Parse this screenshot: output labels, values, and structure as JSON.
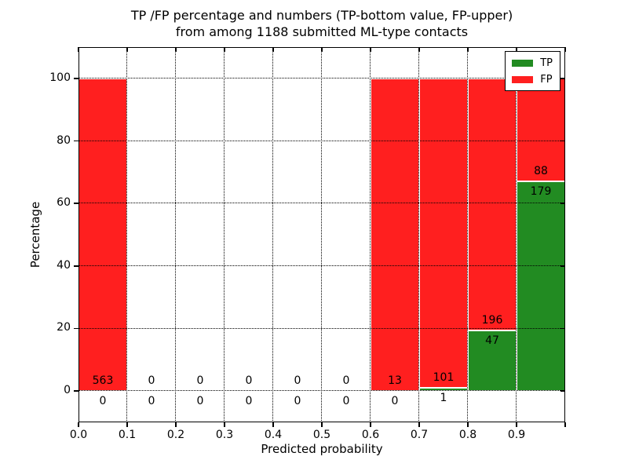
{
  "chart_data": {
    "type": "bar",
    "subtype": "stacked-percentage-histogram",
    "title_line1": "TP /FP percentage and numbers (TP-bottom value, FP-upper)",
    "title_line2": "from among 1188 submitted ML-type contacts",
    "xlabel": "Predicted probability",
    "ylabel": "Percentage",
    "xlim": [
      0.0,
      1.0
    ],
    "ylim": [
      -10,
      110
    ],
    "grid": "dotted, both axes, drawn over bars",
    "legend_position": "upper right",
    "xticks": [
      "0.0",
      "0.1",
      "0.2",
      "0.3",
      "0.4",
      "0.5",
      "0.6",
      "0.7",
      "0.8",
      "0.9"
    ],
    "yticks": [
      0,
      20,
      40,
      60,
      80,
      100
    ],
    "bin_edges": [
      0.0,
      0.1,
      0.2,
      0.3,
      0.4,
      0.5,
      0.6,
      0.7,
      0.8,
      0.9,
      1.0
    ],
    "series": [
      {
        "name": "TP",
        "color": "#228b22",
        "counts": [
          0,
          0,
          0,
          0,
          0,
          0,
          0,
          1,
          47,
          179
        ]
      },
      {
        "name": "FP",
        "color": "#ff1f1f",
        "counts": [
          563,
          0,
          0,
          0,
          0,
          0,
          13,
          101,
          196,
          88
        ]
      }
    ],
    "bar_value_note": "each non-empty bin drawn to 100%; green TP share = tp/(tp+fp)*100; labels show raw counts (TP bottom, FP upper)",
    "tp_percent_by_bin": [
      0,
      0,
      0,
      0,
      0,
      0,
      0,
      0.98,
      19.34,
      67.04
    ],
    "total_contacts": 1188
  }
}
